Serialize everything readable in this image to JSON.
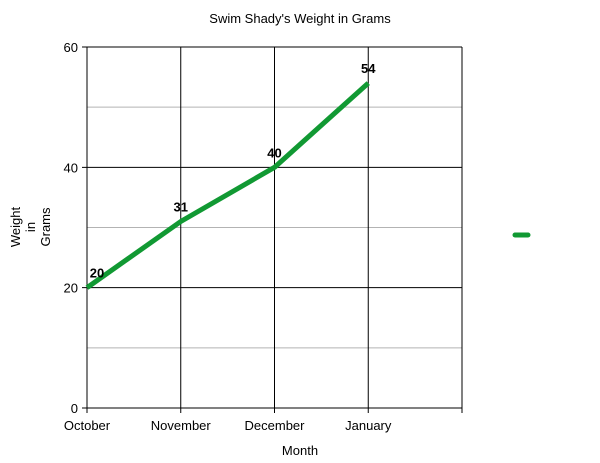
{
  "chart_data": {
    "type": "line",
    "title": "Swim Shady's Weight in Grams",
    "xlabel": "Month",
    "ylabel_lines": [
      "Weight",
      "in",
      "Grams"
    ],
    "categories": [
      "October",
      "November",
      "December",
      "January"
    ],
    "series": [
      {
        "name": "",
        "values": [
          20,
          31,
          40,
          54
        ],
        "color": "#119933"
      }
    ],
    "ylim": [
      0,
      60
    ],
    "yticks": [
      0,
      20,
      40,
      60
    ],
    "y_minor_step": 10,
    "data_labels": [
      "20",
      "31",
      "40",
      "54"
    ],
    "grid": true,
    "legend": "right"
  }
}
